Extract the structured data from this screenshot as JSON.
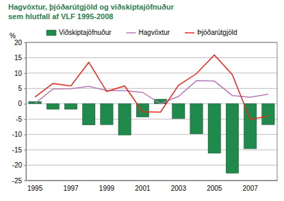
{
  "chart_data": {
    "type": "bar",
    "title": "Hagvöxtur, þjóðarútgjöld og viðskiptajöfnuður",
    "subtitle": "sem hlutfall af VLF 1995-2008",
    "y_label": "%",
    "categories": [
      "1995",
      null,
      "1997",
      null,
      "1999",
      null,
      "2001",
      null,
      "2003",
      null,
      "2005",
      null,
      "2007",
      null
    ],
    "series": [
      {
        "name": "Viðskiptajöfnuður",
        "type": "bar",
        "color": "#1f8a4c",
        "values": [
          0.7,
          -1.8,
          -1.8,
          -6.9,
          -6.8,
          -10.2,
          -4.3,
          1.5,
          -4.8,
          -9.8,
          -16.1,
          -22.6,
          -14.6,
          -6.8
        ]
      },
      {
        "name": "Hagvöxtur",
        "type": "line",
        "color": "#b57ab5",
        "values": [
          0.1,
          4.8,
          4.9,
          5.7,
          4.3,
          4.3,
          3.7,
          0.0,
          2.4,
          7.5,
          7.4,
          2.7,
          2.1,
          3.1
        ]
      },
      {
        "name": "Þjóðarútgjöld",
        "type": "line",
        "color": "#e8261c",
        "values": [
          2.2,
          6.6,
          5.8,
          13.5,
          4.0,
          5.8,
          -2.6,
          -2.7,
          6.0,
          9.8,
          15.9,
          9.5,
          -5.1,
          -4.0
        ]
      }
    ],
    "ylim": [
      -25,
      20
    ],
    "yticks": [
      -25,
      -20,
      -15,
      -10,
      -5,
      0,
      5,
      10,
      15,
      20
    ],
    "grid": true,
    "legend": "top"
  }
}
